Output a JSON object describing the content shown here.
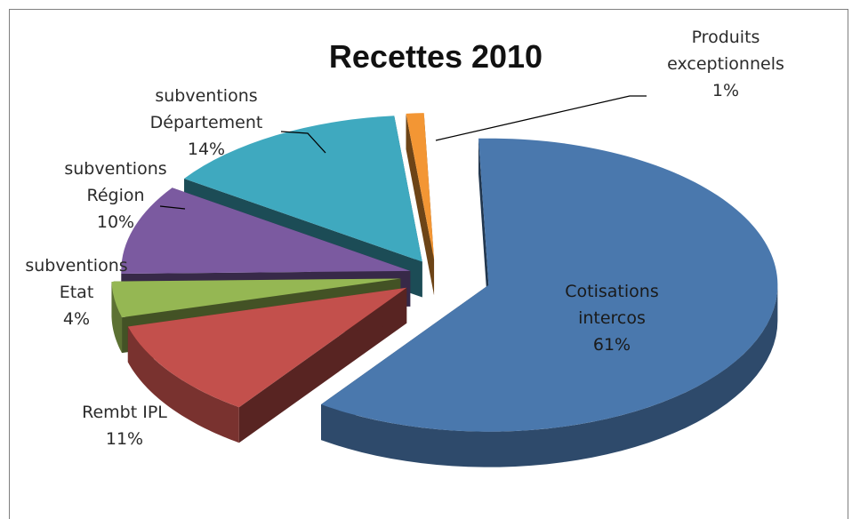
{
  "chart_data": {
    "type": "pie",
    "title": "Recettes 2010",
    "slices": [
      {
        "key": "cotisations",
        "label": [
          "Cotisations",
          "intercos"
        ],
        "pct_label": "61%",
        "value": 61,
        "color": "#4a78ad"
      },
      {
        "key": "rembt",
        "label": [
          "Rembt IPL"
        ],
        "pct_label": "11%",
        "value": 11,
        "color": "#c3504c"
      },
      {
        "key": "etat",
        "label": [
          "subventions",
          "Etat"
        ],
        "pct_label": "4%",
        "value": 4,
        "color": "#95b753"
      },
      {
        "key": "region",
        "label": [
          "subventions",
          "Région"
        ],
        "pct_label": "10%",
        "value": 10,
        "color": "#7b5aa0"
      },
      {
        "key": "departement",
        "label": [
          "subventions",
          "Département"
        ],
        "pct_label": "14%",
        "value": 14,
        "color": "#3fa9bf"
      },
      {
        "key": "produits",
        "label": [
          "Produits",
          "exceptionnels"
        ],
        "pct_label": "1%",
        "value": 1,
        "color": "#f39634"
      }
    ],
    "legend": "none",
    "style": "3d-exploded"
  }
}
